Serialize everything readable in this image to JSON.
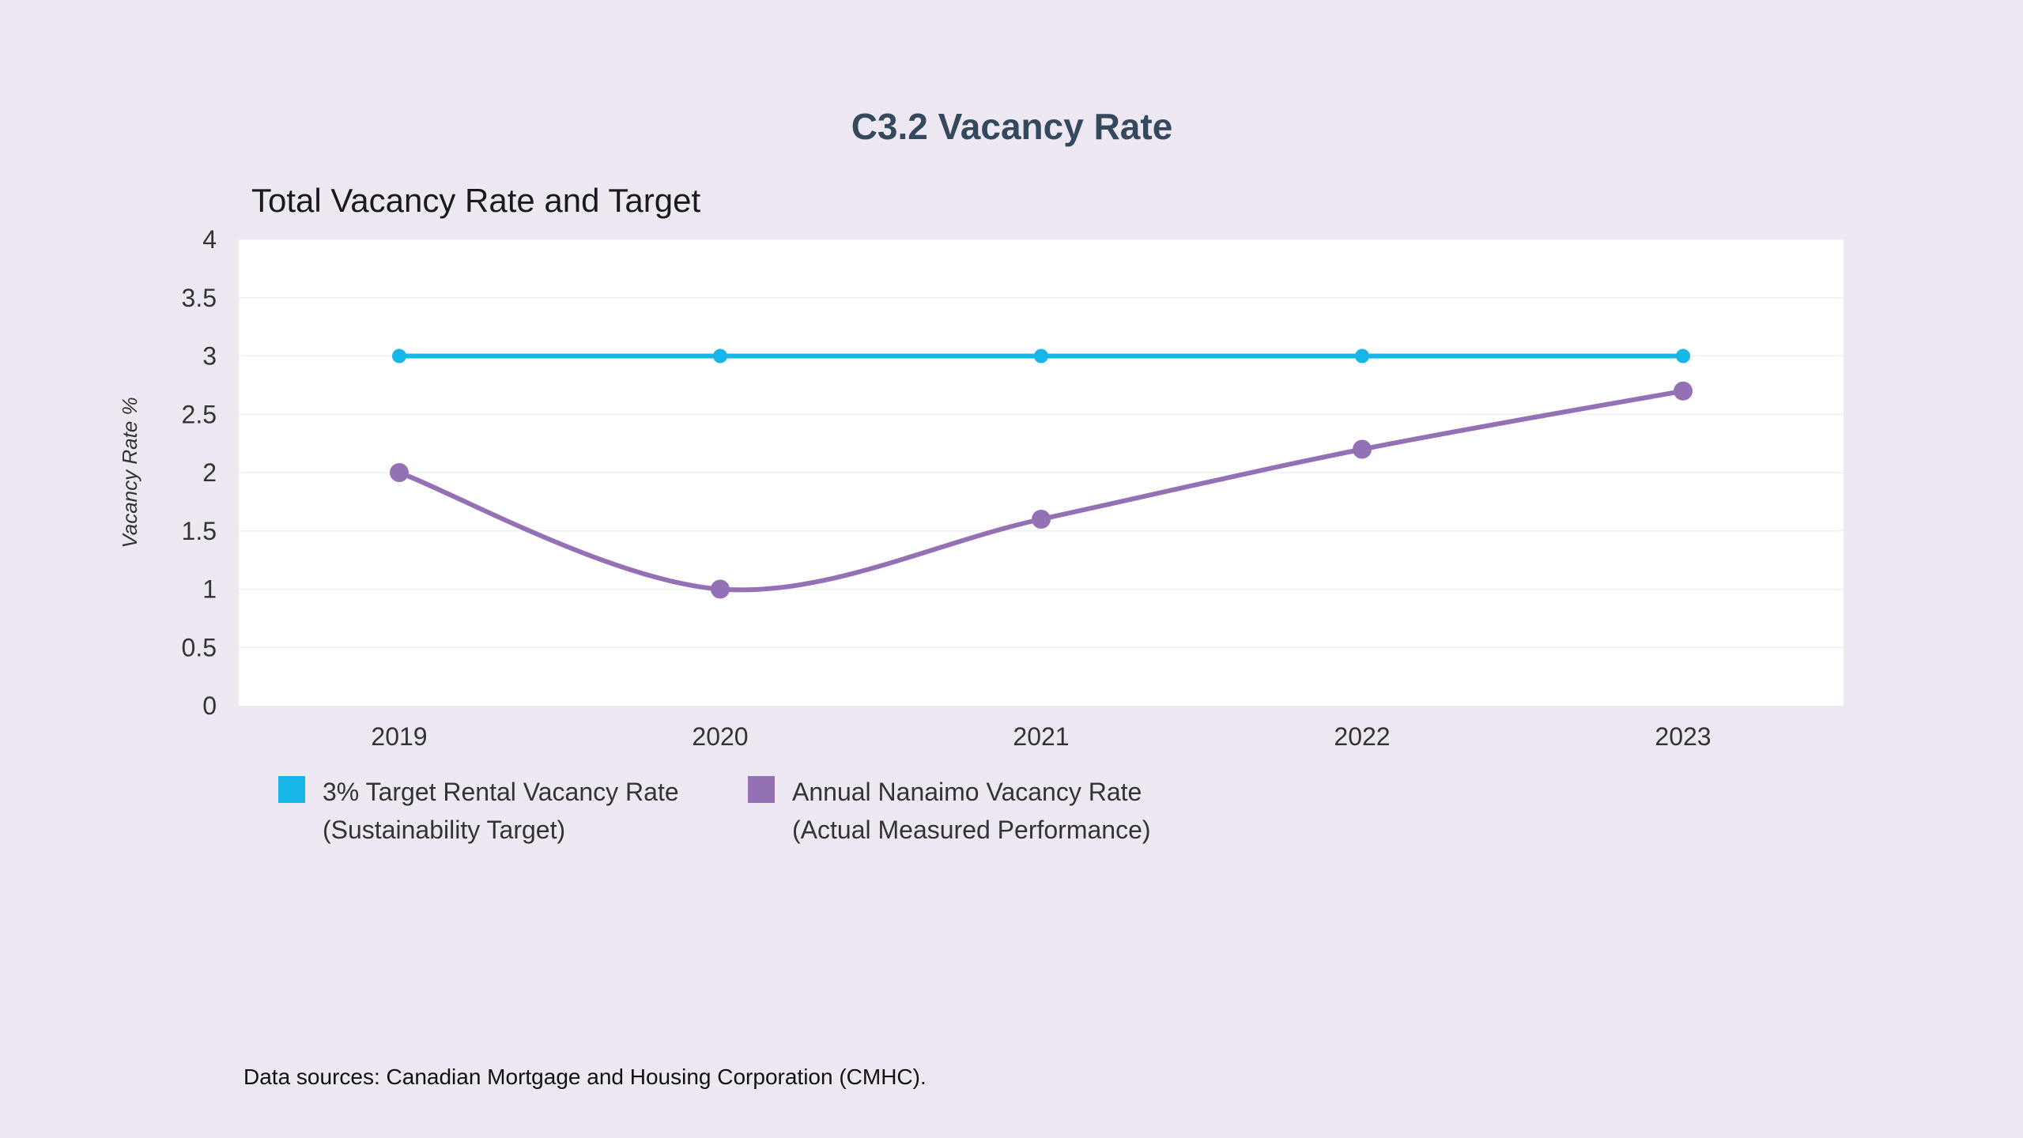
{
  "page": {
    "title": "C3.2 Vacancy Rate",
    "source_note": "Data sources: Canadian Mortgage and Housing Corporation (CMHC)."
  },
  "colors": {
    "background": "#EEE8F3",
    "plot_area": "#FFFFFF",
    "target_series": "#16B6E8",
    "actual_series": "#9371B4",
    "title": "#34495E"
  },
  "chart_data": {
    "type": "line",
    "title": "Total Vacancy Rate and Target",
    "xlabel": "",
    "ylabel": "Vacancy Rate %",
    "categories": [
      "2019",
      "2020",
      "2021",
      "2022",
      "2023"
    ],
    "ylim": [
      0,
      4
    ],
    "yticks": [
      0,
      0.5,
      1,
      1.5,
      2,
      2.5,
      3,
      3.5,
      4
    ],
    "ytick_labels": [
      "0",
      "0.5",
      "1",
      "1.5",
      "2",
      "2.5",
      "3",
      "3.5",
      "4"
    ],
    "grid": true,
    "legend_position": "bottom-left",
    "series": [
      {
        "name_line1": "3% Target Rental Vacancy Rate",
        "name_line2": "(Sustainability Target)",
        "color": "#16B6E8",
        "smooth": false,
        "values": [
          3,
          3,
          3,
          3,
          3
        ]
      },
      {
        "name_line1": "Annual Nanaimo Vacancy Rate",
        "name_line2": "(Actual Measured Performance)",
        "color": "#9371B4",
        "smooth": true,
        "values": [
          2.0,
          1.0,
          1.6,
          2.2,
          2.7
        ]
      }
    ]
  }
}
